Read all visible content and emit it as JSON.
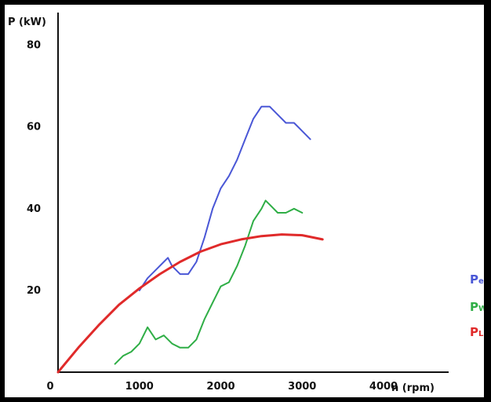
{
  "chart_data": {
    "type": "line",
    "title": "",
    "xlabel": "n (rpm)",
    "ylabel": "P (kW)",
    "xlim": [
      0,
      4800
    ],
    "ylim": [
      0,
      88
    ],
    "x_ticks": [
      "0",
      "1000",
      "2000",
      "3000",
      "4000"
    ],
    "y_ticks": [
      "20",
      "40",
      "60",
      "80"
    ],
    "grid": false,
    "legend_position": "right",
    "series": [
      {
        "name": "Pe",
        "color": "#4a57d6",
        "x": [
          1000,
          1100,
          1200,
          1300,
          1350,
          1400,
          1500,
          1600,
          1700,
          1800,
          1900,
          2000,
          2100,
          2200,
          2300,
          2400,
          2500,
          2600,
          2700,
          2800,
          2900,
          3000,
          3100
        ],
        "y": [
          20,
          23,
          25,
          27,
          28,
          26,
          24,
          24,
          27,
          33,
          40,
          45,
          48,
          52,
          57,
          62,
          65,
          65,
          63,
          61,
          61,
          59,
          57
        ]
      },
      {
        "name": "PW",
        "color": "#2fae46",
        "x": [
          700,
          800,
          900,
          1000,
          1100,
          1200,
          1300,
          1400,
          1500,
          1600,
          1700,
          1800,
          1900,
          2000,
          2100,
          2200,
          2300,
          2400,
          2500,
          2550,
          2600,
          2700,
          2800,
          2900,
          3000
        ],
        "y": [
          2,
          4,
          5,
          7,
          11,
          8,
          9,
          7,
          6,
          6,
          8,
          13,
          17,
          21,
          22,
          26,
          31,
          37,
          40,
          42,
          41,
          39,
          39,
          40,
          39
        ]
      },
      {
        "name": "PL",
        "color": "#e02a2a",
        "x": [
          0,
          250,
          500,
          750,
          1000,
          1250,
          1500,
          1750,
          2000,
          2250,
          2500,
          2750,
          3000,
          3250
        ],
        "y": [
          0,
          6,
          11.5,
          16.5,
          20.5,
          24,
          27,
          29.5,
          31.3,
          32.5,
          33.3,
          33.7,
          33.5,
          32.5
        ]
      }
    ]
  }
}
